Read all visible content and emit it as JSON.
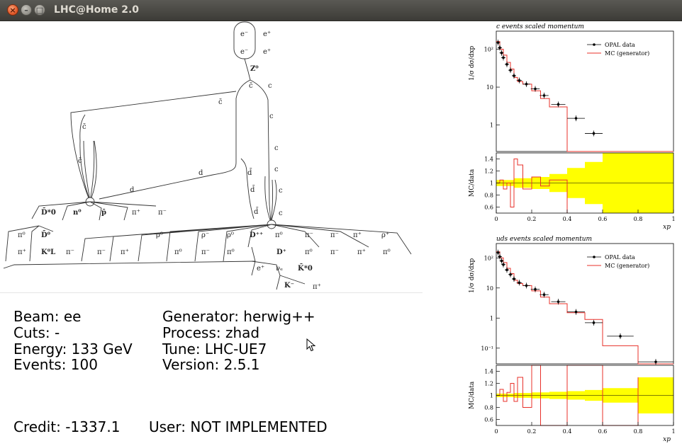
{
  "window": {
    "title": "LHC@Home 2.0",
    "buttons": {
      "close": "×",
      "minimize": "–",
      "maximize": "□"
    }
  },
  "diagram": {
    "labels": {
      "e_minus_1": "e⁻",
      "e_plus_1": "e⁺",
      "e_minus_2": "e⁻",
      "e_plus_2": "e⁺",
      "z0": "Z⁰",
      "cbar_top": "c̄",
      "c_top": "c",
      "c_right1": "c",
      "c_right2": "c",
      "c_right3": "c",
      "c_right4": "c",
      "c_right5": "c",
      "cbar_left1": "c̄",
      "cbar_left2": "c̄",
      "d_mid": "d",
      "d_low": "d",
      "dbar1": "d̄",
      "dbar2": "d̄",
      "dbar3": "d̄",
      "Dbar_star0": "D̄*0",
      "n0": "n⁰",
      "pbar": "p̄",
      "pi_plus_a": "π⁺",
      "pi_minus_a": "π⁻",
      "pi0_a": "π⁰",
      "Dbar0": "D̄⁰",
      "pi_plus_b": "π⁺",
      "K0L": "K⁰L",
      "pi_minus_b": "π⁻",
      "pi_minus_c": "π⁻",
      "pi_plus_c": "π⁺",
      "rho0_a": "ρ⁰",
      "pi0_b": "π⁰",
      "rho_minus": "ρ⁻",
      "pi_minus_d": "π⁻",
      "rho0_b": "ρ⁰",
      "pi0_c": "π⁰",
      "Dpp": "D⁺⁺",
      "pi0_d": "π⁰",
      "pi_minus_e": "π⁻",
      "pi0_e": "π⁰",
      "pi_minus_f": "π⁻",
      "pi_plus_d": "π⁺",
      "rho_plus": "ρ⁺",
      "pi_minus_g": "π⁻",
      "pi_plus_e": "π⁺",
      "pi0_f": "π⁰",
      "Dplus": "D⁺",
      "e_plus_3": "e⁺",
      "nu_e": "νₑ",
      "Kbar_star0": "K̄*0",
      "K_minus": "K⁻",
      "pi_plus_f": "π⁺"
    }
  },
  "info": {
    "beam": "Beam: ee",
    "cuts": "Cuts: -",
    "energy": "Energy: 133 GeV",
    "events": "Events: 100",
    "generator": "Generator: herwig++",
    "process": "Process: zhad",
    "tune": "Tune: LHC-UE7",
    "version": "Version: 2.5.1",
    "credit": "Credit: -1337.1",
    "user": "User: NOT IMPLEMENTED"
  },
  "colors": {
    "mc": "#e8302a",
    "data": "#000000",
    "band": "#ffff00",
    "titlebar": "#3c3b37"
  },
  "chart_data": [
    {
      "type": "line",
      "title": "c events scaled momentum",
      "ylabel": "1/σ dσ/dxp",
      "xlabel": "xp",
      "log_y": true,
      "ylim": [
        0.2,
        300
      ],
      "xlim": [
        0,
        1
      ],
      "xticks": [
        "0",
        "0.2",
        "0.4",
        "0.6",
        "0.8",
        "1"
      ],
      "yticks": [
        "10²",
        "10",
        "1"
      ],
      "legend": [
        "OPAL data",
        "MC (generator)"
      ],
      "series": [
        {
          "name": "OPAL data",
          "x": [
            0.01,
            0.02,
            0.03,
            0.04,
            0.06,
            0.08,
            0.1,
            0.13,
            0.17,
            0.22,
            0.27,
            0.35,
            0.45,
            0.55
          ],
          "y": [
            150,
            110,
            80,
            60,
            40,
            28,
            20,
            15,
            12,
            9,
            6,
            3.5,
            1.5,
            0.6
          ]
        },
        {
          "name": "MC (generator)",
          "x": [
            0,
            0.02,
            0.04,
            0.06,
            0.08,
            0.1,
            0.12,
            0.15,
            0.2,
            0.25,
            0.3,
            0.4,
            0.5,
            0.6
          ],
          "y": [
            160,
            100,
            70,
            45,
            30,
            18,
            14,
            12,
            8,
            5,
            3,
            0.2,
            0.2,
            0.2
          ]
        }
      ],
      "ratio": {
        "ylabel": "MC/data",
        "yticks": [
          "1.4",
          "1.2",
          "1",
          "0.8",
          "0.6"
        ],
        "ylim": [
          0.5,
          1.5
        ],
        "mc_x": [
          0,
          0.02,
          0.04,
          0.06,
          0.08,
          0.1,
          0.12,
          0.15,
          0.2,
          0.25,
          0.3,
          0.4
        ],
        "mc_y": [
          1.0,
          1.05,
          0.9,
          1.0,
          0.6,
          1.4,
          1.3,
          0.9,
          1.1,
          0.95,
          1.05,
          0.5
        ],
        "band_x": [
          0,
          0.1,
          0.2,
          0.3,
          0.4,
          0.5,
          0.6,
          0.8,
          1.0
        ],
        "band_half": [
          0.05,
          0.08,
          0.1,
          0.15,
          0.25,
          0.35,
          0.5,
          0.5,
          0.5
        ]
      }
    },
    {
      "type": "line",
      "title": "uds events scaled momentum",
      "ylabel": "1/σ dσ/dxp",
      "xlabel": "xp",
      "log_y": true,
      "ylim": [
        0.03,
        300
      ],
      "xlim": [
        0,
        1
      ],
      "xticks": [
        "0",
        "0.2",
        "0.4",
        "0.6",
        "0.8",
        "1"
      ],
      "yticks": [
        "10²",
        "10",
        "1",
        "10⁻¹"
      ],
      "legend": [
        "OPAL data",
        "MC (generator)"
      ],
      "series": [
        {
          "name": "OPAL data",
          "x": [
            0.01,
            0.02,
            0.03,
            0.04,
            0.06,
            0.08,
            0.1,
            0.13,
            0.17,
            0.22,
            0.27,
            0.35,
            0.45,
            0.55,
            0.7,
            0.9
          ],
          "y": [
            150,
            110,
            80,
            60,
            40,
            28,
            20,
            15,
            12,
            9,
            6,
            3.5,
            1.6,
            0.7,
            0.25,
            0.035
          ]
        },
        {
          "name": "MC (generator)",
          "x": [
            0,
            0.02,
            0.04,
            0.06,
            0.08,
            0.1,
            0.12,
            0.15,
            0.2,
            0.25,
            0.3,
            0.4,
            0.5,
            0.6,
            0.8,
            1.0
          ],
          "y": [
            160,
            100,
            70,
            45,
            30,
            18,
            14,
            12,
            8,
            5,
            3,
            1.5,
            0.9,
            0.12,
            0.03,
            0.03
          ]
        }
      ],
      "ratio": {
        "ylabel": "MC/data",
        "yticks": [
          "1.4",
          "1.2",
          "1",
          "0.8",
          "0.6"
        ],
        "ylim": [
          0.5,
          1.5
        ],
        "mc_x": [
          0,
          0.02,
          0.04,
          0.06,
          0.08,
          0.1,
          0.12,
          0.15,
          0.2,
          0.25,
          0.3,
          0.4,
          0.5,
          0.6,
          0.8
        ],
        "mc_y": [
          1.0,
          1.1,
          0.9,
          1.05,
          1.2,
          0.9,
          1.3,
          0.8,
          1.5,
          0.5,
          0.5,
          1.5,
          1.5,
          0.5,
          1.3
        ],
        "band_x": [
          0,
          0.1,
          0.2,
          0.3,
          0.4,
          0.5,
          0.6,
          0.8,
          1.0
        ],
        "band_half": [
          0.03,
          0.04,
          0.05,
          0.06,
          0.07,
          0.09,
          0.12,
          0.3,
          0.3
        ]
      }
    }
  ]
}
